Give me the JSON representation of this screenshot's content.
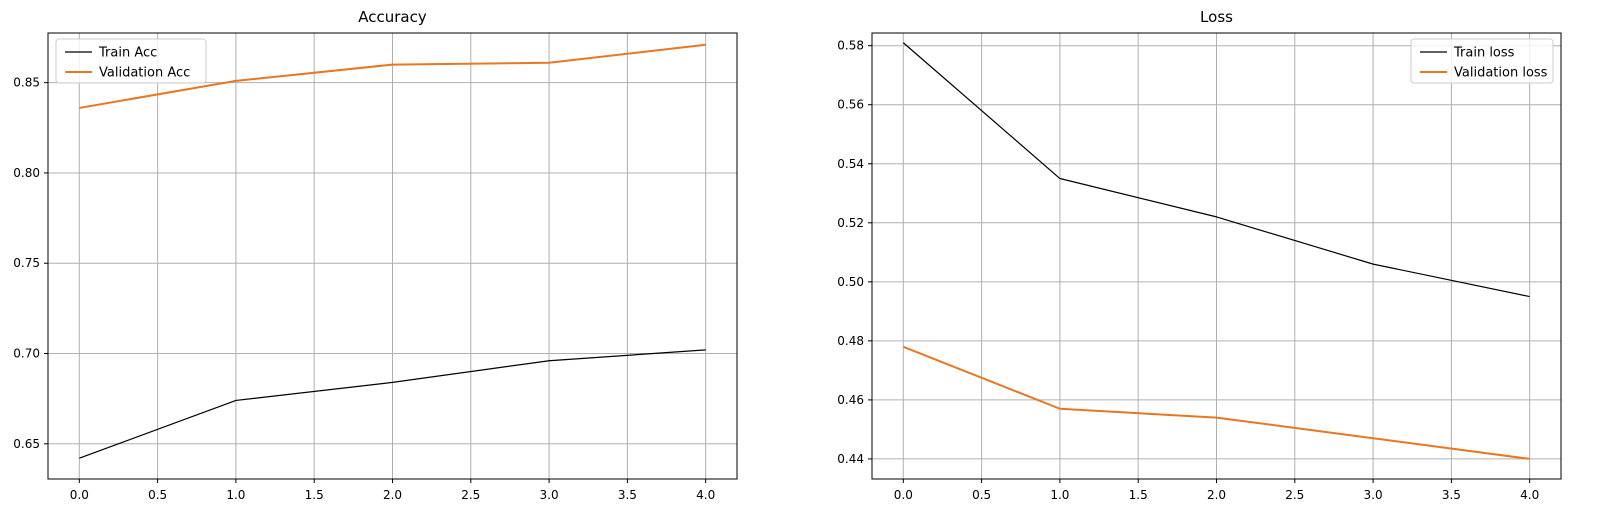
{
  "chart_data": [
    {
      "type": "line",
      "title": "Accuracy",
      "xlabel": "",
      "ylabel": "",
      "x": [
        0,
        1,
        2,
        3,
        4
      ],
      "xlim": [
        -0.2,
        4.2
      ],
      "ylim": [
        0.6305,
        0.8775
      ],
      "xticks": [
        0.0,
        0.5,
        1.0,
        1.5,
        2.0,
        2.5,
        3.0,
        3.5,
        4.0
      ],
      "xtick_labels": [
        "0.0",
        "0.5",
        "1.0",
        "1.5",
        "2.0",
        "2.5",
        "3.0",
        "3.5",
        "4.0"
      ],
      "yticks": [
        0.65,
        0.7,
        0.75,
        0.8,
        0.85
      ],
      "ytick_labels": [
        "0.65",
        "0.70",
        "0.75",
        "0.80",
        "0.85"
      ],
      "grid": true,
      "legend_position": "top-left",
      "series": [
        {
          "name": "Train Acc",
          "color": "#000000",
          "values": [
            0.642,
            0.674,
            0.684,
            0.696,
            0.702
          ]
        },
        {
          "name": "Validation Acc",
          "color": "#e87722",
          "values": [
            0.836,
            0.851,
            0.86,
            0.861,
            0.871
          ]
        }
      ]
    },
    {
      "type": "line",
      "title": "Loss",
      "xlabel": "",
      "ylabel": "",
      "x": [
        0,
        1,
        2,
        3,
        4
      ],
      "xlim": [
        -0.2,
        4.2
      ],
      "ylim": [
        0.4332,
        0.5843
      ],
      "xticks": [
        0.0,
        0.5,
        1.0,
        1.5,
        2.0,
        2.5,
        3.0,
        3.5,
        4.0
      ],
      "xtick_labels": [
        "0.0",
        "0.5",
        "1.0",
        "1.5",
        "2.0",
        "2.5",
        "3.0",
        "3.5",
        "4.0"
      ],
      "yticks": [
        0.44,
        0.46,
        0.48,
        0.5,
        0.52,
        0.54,
        0.56,
        0.58
      ],
      "ytick_labels": [
        "0.44",
        "0.46",
        "0.48",
        "0.50",
        "0.52",
        "0.54",
        "0.56",
        "0.58"
      ],
      "grid": true,
      "legend_position": "top-right",
      "series": [
        {
          "name": "Train loss",
          "color": "#000000",
          "values": [
            0.581,
            0.535,
            0.522,
            0.506,
            0.495
          ]
        },
        {
          "name": "Validation loss",
          "color": "#e87722",
          "values": [
            0.478,
            0.457,
            0.454,
            0.447,
            0.44
          ]
        }
      ]
    }
  ]
}
